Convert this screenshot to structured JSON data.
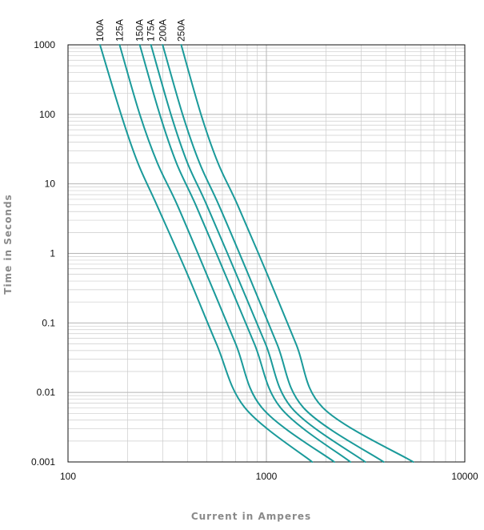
{
  "chart_data": {
    "type": "line",
    "xlabel": "Current in Amperes",
    "ylabel": "Time in Seconds",
    "x_scale": "log",
    "y_scale": "log",
    "xlim": [
      100,
      10000
    ],
    "ylim": [
      0.001,
      1000
    ],
    "x_ticks": [
      "100",
      "1000",
      "10000"
    ],
    "y_ticks": [
      "1000",
      "100",
      "10",
      "1",
      "0.1",
      "0.01",
      "0.001"
    ],
    "grid": true,
    "series_color": "#1a9a9a",
    "grid_color": "#cccccc",
    "series": [
      {
        "name": "100A",
        "points": [
          [
            145,
            1000
          ],
          [
            185,
            100
          ],
          [
            225,
            20
          ],
          [
            280,
            5
          ],
          [
            400,
            0.5
          ],
          [
            560,
            0.05
          ],
          [
            780,
            0.006
          ],
          [
            1700,
            0.001
          ]
        ]
      },
      {
        "name": "125A",
        "points": [
          [
            182,
            1000
          ],
          [
            230,
            100
          ],
          [
            282,
            20
          ],
          [
            355,
            5
          ],
          [
            500,
            0.5
          ],
          [
            700,
            0.05
          ],
          [
            950,
            0.006
          ],
          [
            2200,
            0.001
          ]
        ]
      },
      {
        "name": "150A",
        "points": [
          [
            230,
            1000
          ],
          [
            290,
            100
          ],
          [
            352,
            20
          ],
          [
            440,
            5
          ],
          [
            620,
            0.5
          ],
          [
            870,
            0.05
          ],
          [
            1180,
            0.006
          ],
          [
            2650,
            0.001
          ]
        ]
      },
      {
        "name": "175A",
        "points": [
          [
            262,
            1000
          ],
          [
            330,
            100
          ],
          [
            400,
            20
          ],
          [
            500,
            5
          ],
          [
            705,
            0.5
          ],
          [
            990,
            0.05
          ],
          [
            1340,
            0.006
          ],
          [
            3150,
            0.001
          ]
        ]
      },
      {
        "name": "200A",
        "points": [
          [
            300,
            1000
          ],
          [
            378,
            100
          ],
          [
            460,
            20
          ],
          [
            575,
            5
          ],
          [
            810,
            0.5
          ],
          [
            1130,
            0.05
          ],
          [
            1540,
            0.006
          ],
          [
            3900,
            0.001
          ]
        ]
      },
      {
        "name": "250A",
        "points": [
          [
            372,
            1000
          ],
          [
            468,
            100
          ],
          [
            570,
            20
          ],
          [
            715,
            5
          ],
          [
            1010,
            0.5
          ],
          [
            1410,
            0.05
          ],
          [
            1930,
            0.006
          ],
          [
            5500,
            0.001
          ]
        ]
      }
    ]
  }
}
